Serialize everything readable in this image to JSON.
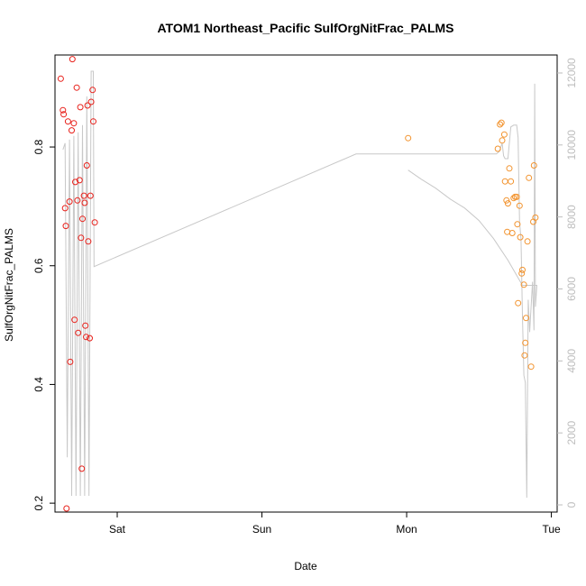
{
  "chart_data": {
    "type": "scatter",
    "title": "ATOM1 Northeast_Pacific SulfOrgNitFrac_PALMS",
    "xlabel": "Date",
    "ylabel": "SulfOrgNitFrac_PALMS",
    "x_ticks": [
      {
        "value": 1.0,
        "label": "Sat"
      },
      {
        "value": 2.0,
        "label": "Sun"
      },
      {
        "value": 3.0,
        "label": "Mon"
      },
      {
        "value": 4.0,
        "label": "Tue"
      }
    ],
    "xlim": [
      0.57,
      4.04
    ],
    "ylim": [
      0.185,
      0.955
    ],
    "y_ticks": [
      0.2,
      0.4,
      0.6,
      0.8
    ],
    "y2_ticks": [
      0,
      2000,
      4000,
      6000,
      8000,
      10000,
      12000
    ],
    "y2lim": [
      -200,
      12500
    ],
    "colors": {
      "series1": "#e8211b",
      "series2": "#f2932e",
      "altitude": "#c8c8c8"
    },
    "series": [
      {
        "color": "#e8211b",
        "points": [
          [
            0.61,
            0.915
          ],
          [
            0.625,
            0.862
          ],
          [
            0.63,
            0.855
          ],
          [
            0.64,
            0.697
          ],
          [
            0.645,
            0.667
          ],
          [
            0.65,
            0.191
          ],
          [
            0.66,
            0.843
          ],
          [
            0.67,
            0.708
          ],
          [
            0.675,
            0.438
          ],
          [
            0.685,
            0.828
          ],
          [
            0.69,
            0.948
          ],
          [
            0.7,
            0.84
          ],
          [
            0.705,
            0.509
          ],
          [
            0.71,
            0.741
          ],
          [
            0.72,
            0.9
          ],
          [
            0.725,
            0.71
          ],
          [
            0.73,
            0.487
          ],
          [
            0.74,
            0.744
          ],
          [
            0.745,
            0.867
          ],
          [
            0.75,
            0.647
          ],
          [
            0.755,
            0.258
          ],
          [
            0.76,
            0.679
          ],
          [
            0.77,
            0.718
          ],
          [
            0.775,
            0.706
          ],
          [
            0.78,
            0.499
          ],
          [
            0.785,
            0.48
          ],
          [
            0.79,
            0.769
          ],
          [
            0.795,
            0.87
          ],
          [
            0.8,
            0.641
          ],
          [
            0.81,
            0.478
          ],
          [
            0.815,
            0.718
          ],
          [
            0.82,
            0.876
          ],
          [
            0.83,
            0.896
          ],
          [
            0.835,
            0.843
          ],
          [
            0.845,
            0.673
          ]
        ]
      },
      {
        "color": "#f2932e",
        "points": [
          [
            3.01,
            0.815
          ],
          [
            3.63,
            0.797
          ],
          [
            3.645,
            0.838
          ],
          [
            3.655,
            0.841
          ],
          [
            3.66,
            0.811
          ],
          [
            3.675,
            0.821
          ],
          [
            3.68,
            0.742
          ],
          [
            3.69,
            0.71
          ],
          [
            3.695,
            0.657
          ],
          [
            3.7,
            0.705
          ],
          [
            3.71,
            0.764
          ],
          [
            3.72,
            0.742
          ],
          [
            3.73,
            0.655
          ],
          [
            3.74,
            0.714
          ],
          [
            3.75,
            0.716
          ],
          [
            3.76,
            0.716
          ],
          [
            3.765,
            0.67
          ],
          [
            3.77,
            0.537
          ],
          [
            3.78,
            0.701
          ],
          [
            3.785,
            0.648
          ],
          [
            3.795,
            0.587
          ],
          [
            3.8,
            0.593
          ],
          [
            3.81,
            0.568
          ],
          [
            3.815,
            0.449
          ],
          [
            3.82,
            0.47
          ],
          [
            3.825,
            0.512
          ],
          [
            3.835,
            0.641
          ],
          [
            3.845,
            0.748
          ],
          [
            3.86,
            0.43
          ],
          [
            3.875,
            0.674
          ],
          [
            3.88,
            0.769
          ],
          [
            3.89,
            0.681
          ]
        ]
      }
    ],
    "altitude_series": {
      "color": "#c8c8c8",
      "points": [
        [
          0.625,
          9870
        ],
        [
          0.64,
          10050
        ],
        [
          0.655,
          1320
        ],
        [
          0.67,
          10150
        ],
        [
          0.685,
          250
        ],
        [
          0.7,
          10250
        ],
        [
          0.715,
          250
        ],
        [
          0.73,
          10350
        ],
        [
          0.745,
          250
        ],
        [
          0.76,
          10550
        ],
        [
          0.775,
          250
        ],
        [
          0.79,
          11350
        ],
        [
          0.805,
          250
        ],
        [
          0.82,
          12050
        ],
        [
          0.835,
          12050
        ],
        [
          0.84,
          6620
        ],
        [
          2.65,
          9750
        ],
        [
          3.62,
          9750
        ],
        [
          3.64,
          9820
        ],
        [
          3.66,
          10050
        ],
        [
          3.67,
          9700
        ],
        [
          3.68,
          9620
        ],
        [
          3.7,
          9620
        ],
        [
          3.72,
          10500
        ],
        [
          3.74,
          10550
        ],
        [
          3.76,
          10550
        ],
        [
          3.77,
          10200
        ],
        [
          3.78,
          7850
        ],
        [
          3.79,
          7400
        ],
        [
          3.8,
          5250
        ],
        [
          3.81,
          3600
        ],
        [
          3.82,
          3400
        ],
        [
          3.83,
          200
        ],
        [
          3.84,
          5700
        ],
        [
          3.85,
          4800
        ],
        [
          3.86,
          5500
        ],
        [
          3.87,
          6200
        ],
        [
          3.88,
          4850
        ],
        [
          3.885,
          11700
        ],
        [
          3.89,
          5500
        ],
        [
          3.9,
          6100
        ],
        [
          3.8,
          6100
        ],
        [
          3.7,
          6800
        ],
        [
          3.6,
          7400
        ],
        [
          3.5,
          7900
        ],
        [
          3.4,
          8250
        ],
        [
          3.3,
          8500
        ],
        [
          3.2,
          8800
        ],
        [
          3.1,
          9050
        ],
        [
          3.01,
          9300
        ]
      ]
    }
  }
}
